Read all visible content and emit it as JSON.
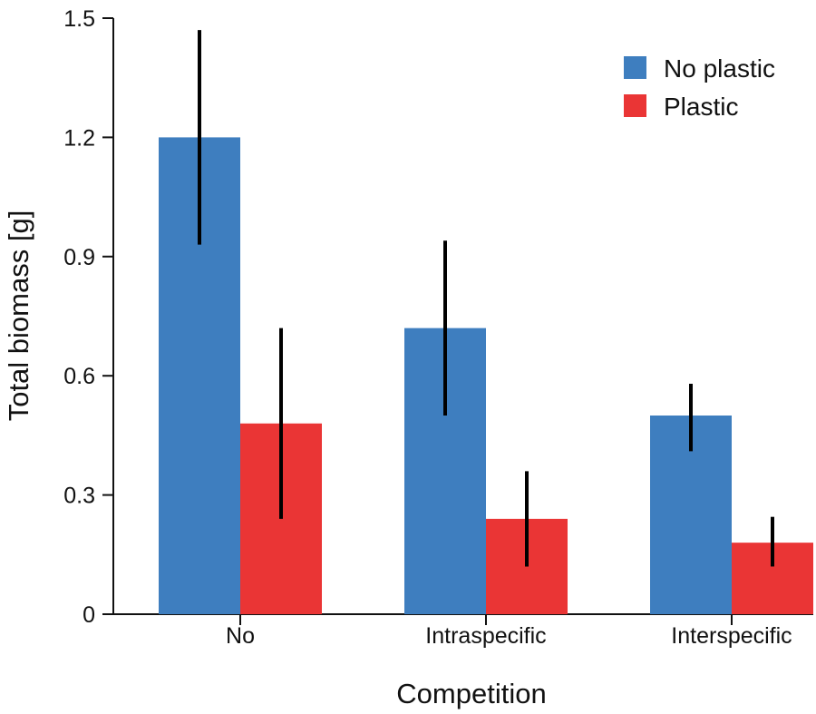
{
  "chart_data": {
    "type": "bar",
    "title": "",
    "xlabel": "Competition",
    "ylabel": "Total biomass [g]",
    "ylim": [
      0,
      1.5
    ],
    "yticks": [
      0,
      0.3,
      0.6,
      0.9,
      1.2,
      1.5
    ],
    "ytick_labels": [
      "0",
      "0.3",
      "0.6",
      "0.9",
      "1.2",
      "1.5"
    ],
    "categories": [
      "No",
      "Intraspecific",
      "Interspecific"
    ],
    "series": [
      {
        "name": "No plastic",
        "color": "#3e7ebf",
        "values": [
          1.2,
          0.72,
          0.5
        ],
        "error_low": [
          0.93,
          0.5,
          0.41
        ],
        "error_high": [
          1.47,
          0.94,
          0.58
        ]
      },
      {
        "name": "Plastic",
        "color": "#ea3535",
        "values": [
          0.48,
          0.24,
          0.18
        ],
        "error_low": [
          0.24,
          0.12,
          0.12
        ],
        "error_high": [
          0.72,
          0.36,
          0.245
        ]
      }
    ],
    "legend_position": "top-right",
    "grid": false
  }
}
